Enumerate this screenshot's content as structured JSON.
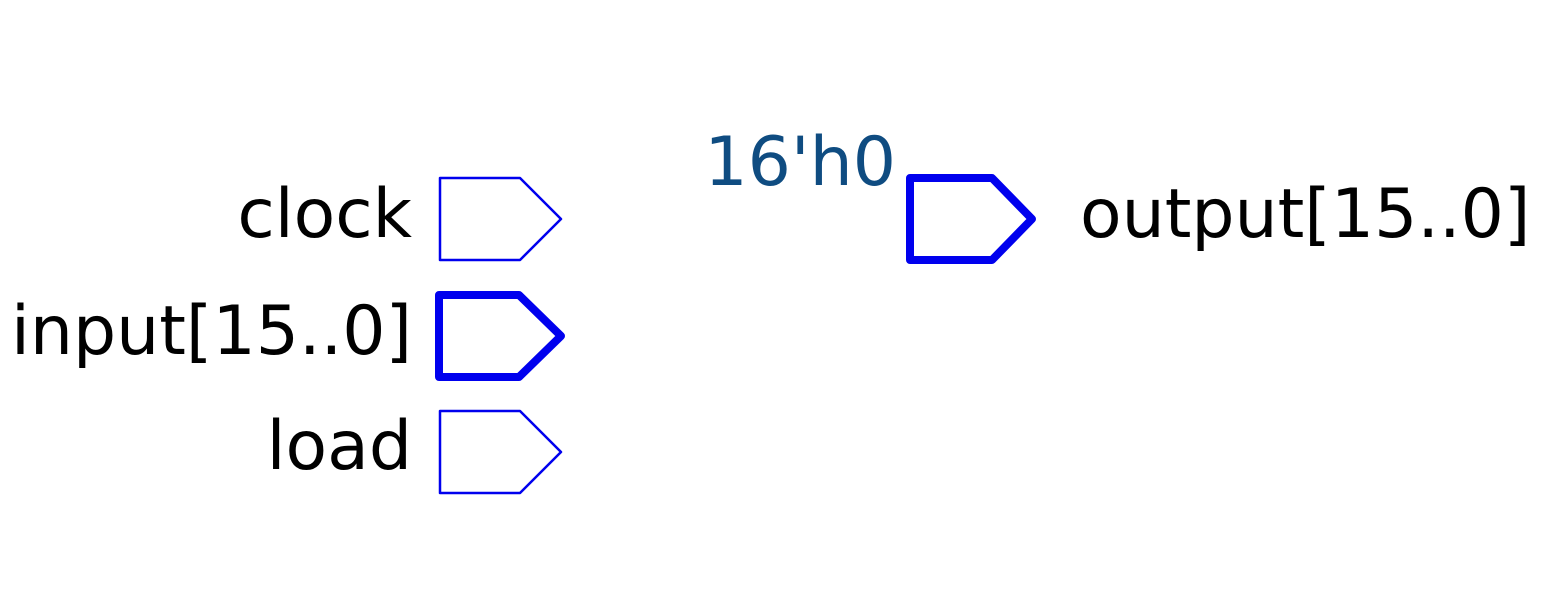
{
  "colors": {
    "pin_stroke": "#0000ee",
    "label_text": "#000000",
    "constant_text": "#0f4c81",
    "background": "#ffffff"
  },
  "inputs": [
    {
      "label": "clock",
      "bus": false
    },
    {
      "label": "input[15..0]",
      "bus": true
    },
    {
      "label": "load",
      "bus": false
    }
  ],
  "outputs": [
    {
      "label": "output[15..0]",
      "bus": true,
      "constant": "16'h0"
    }
  ]
}
